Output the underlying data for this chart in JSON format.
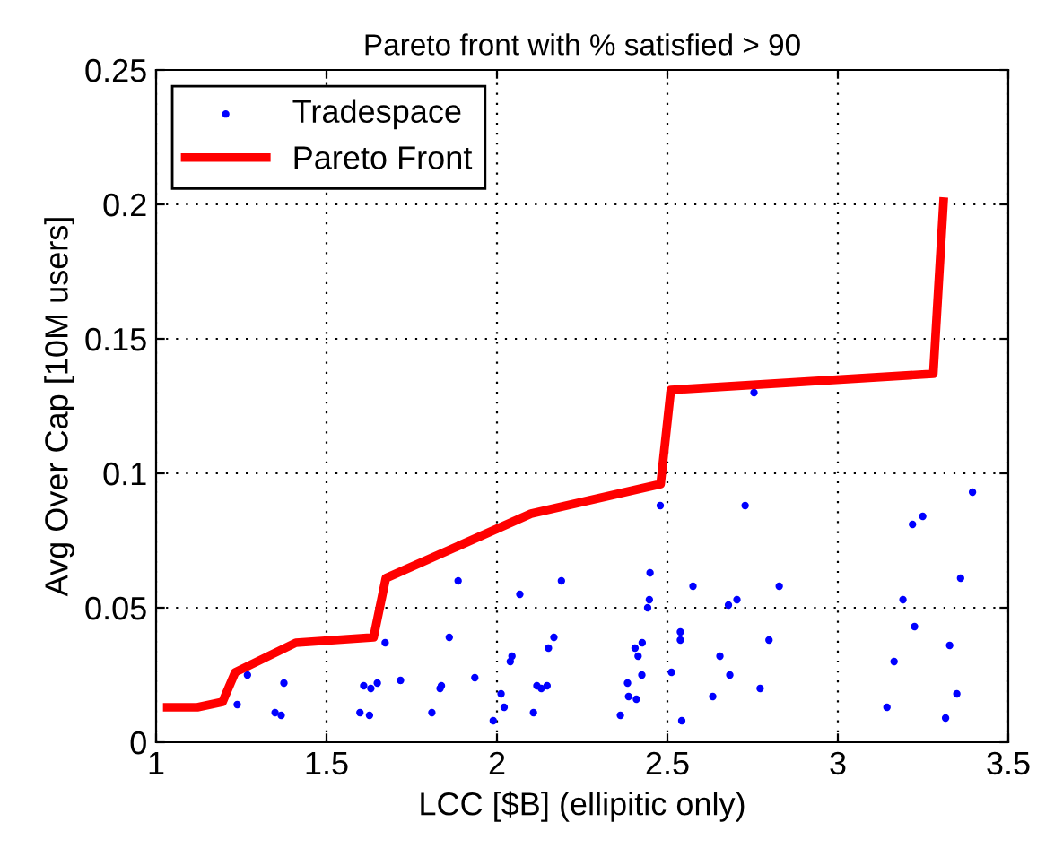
{
  "chart_data": {
    "type": "scatter",
    "title": "Pareto front with % satisfied > 90",
    "xlabel": "LCC [$B] (ellipitic only)",
    "ylabel": "Avg Over Cap [10M users]",
    "xlim": [
      1,
      3.5
    ],
    "xticks": [
      1,
      1.5,
      2,
      2.5,
      3,
      3.5
    ],
    "ylim": [
      0,
      0.25
    ],
    "yticks": [
      0,
      0.05,
      0.1,
      0.15,
      0.2,
      0.25
    ],
    "grid": true,
    "legend": "top left",
    "series": [
      {
        "name": "Tradespace",
        "color": "#0000ff",
        "marker": "circle",
        "x": [
          1.238,
          1.268,
          1.349,
          1.367,
          1.375,
          1.598,
          1.626,
          1.609,
          1.63,
          1.649,
          1.672,
          1.717,
          1.809,
          1.833,
          1.837,
          1.86,
          1.886,
          1.935,
          1.989,
          2.012,
          2.021,
          2.039,
          2.044,
          2.067,
          2.107,
          2.117,
          2.13,
          2.147,
          2.151,
          2.167,
          2.189,
          2.362,
          2.383,
          2.386,
          2.409,
          2.405,
          2.426,
          2.414,
          2.425,
          2.442,
          2.447,
          2.449,
          2.479,
          2.512,
          2.538,
          2.538,
          2.542,
          2.575,
          2.633,
          2.654,
          2.683,
          2.679,
          2.704,
          2.728,
          2.798,
          2.772,
          2.828,
          3.144,
          3.165,
          3.191,
          3.219,
          3.249,
          3.225,
          3.316,
          3.328,
          3.349,
          3.36,
          3.395,
          2.754
        ],
        "values": [
          0.014,
          0.025,
          0.011,
          0.01,
          0.022,
          0.011,
          0.01,
          0.021,
          0.02,
          0.022,
          0.037,
          0.023,
          0.011,
          0.02,
          0.021,
          0.039,
          0.06,
          0.024,
          0.008,
          0.018,
          0.013,
          0.03,
          0.032,
          0.055,
          0.011,
          0.021,
          0.02,
          0.021,
          0.035,
          0.039,
          0.06,
          0.01,
          0.022,
          0.017,
          0.016,
          0.035,
          0.037,
          0.032,
          0.025,
          0.05,
          0.053,
          0.063,
          0.088,
          0.026,
          0.041,
          0.038,
          0.008,
          0.058,
          0.017,
          0.032,
          0.025,
          0.051,
          0.053,
          0.088,
          0.038,
          0.02,
          0.058,
          0.013,
          0.03,
          0.053,
          0.081,
          0.084,
          0.043,
          0.009,
          0.036,
          0.018,
          0.061,
          0.093,
          0.13
        ]
      },
      {
        "name": "Pareto Front",
        "type": "line",
        "color": "#ff0000",
        "marker": "none",
        "line_style": "solid",
        "x": [
          1.033,
          1.121,
          1.195,
          1.232,
          1.41,
          1.638,
          1.674,
          2.1,
          2.48,
          2.51,
          3.28,
          3.31
        ],
        "values": [
          0.013,
          0.013,
          0.015,
          0.026,
          0.037,
          0.039,
          0.061,
          0.085,
          0.096,
          0.131,
          0.137,
          0.201
        ]
      }
    ]
  }
}
